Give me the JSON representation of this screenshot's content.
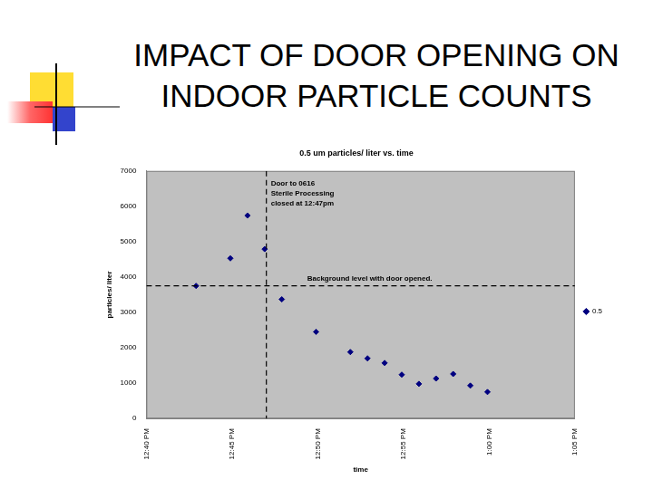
{
  "slide": {
    "title": [
      "IMPACT OF DOOR OPENING ON",
      "INDOOR PARTICLE COUNTS"
    ]
  },
  "chart_data": {
    "type": "scatter",
    "title": "0.5 um particles/ liter vs. time",
    "x_label": "time",
    "y_label": "particles/ liter",
    "series": [
      {
        "name": "0.5",
        "color": "#000080",
        "marker": "diamond",
        "x": [
          42.9,
          44.9,
          45.9,
          46.9,
          47.9,
          49.9,
          51.9,
          52.9,
          53.9,
          54.9,
          55.9,
          56.9,
          57.9,
          58.9,
          59.9
        ],
        "values": [
          3750,
          4530,
          5740,
          4790,
          3370,
          2450,
          1880,
          1700,
          1570,
          1240,
          980,
          1130,
          1260,
          930,
          750
        ]
      }
    ],
    "xlim": [
      40,
      65
    ],
    "xticks": [
      {
        "value": 40,
        "label": "12:40 PM"
      },
      {
        "value": 45,
        "label": "12:45 PM"
      },
      {
        "value": 50,
        "label": "12:50 PM"
      },
      {
        "value": 55,
        "label": "12:55 PM"
      },
      {
        "value": 60,
        "label": "1:00 PM"
      },
      {
        "value": 65,
        "label": "1:05 PM"
      }
    ],
    "ylim": [
      0,
      7000
    ],
    "yticks": [
      0,
      1000,
      2000,
      3000,
      4000,
      5000,
      6000,
      7000
    ],
    "grid": false,
    "legend": "right",
    "annotations": [
      {
        "x": 47,
        "text": [
          "Door to 0616",
          "Sterile Processing",
          "closed at 12:47pm"
        ],
        "line_style": "dashed"
      },
      {
        "y": 3750,
        "text": [
          "Background level with door opened."
        ],
        "line_style": "dashed"
      }
    ]
  }
}
